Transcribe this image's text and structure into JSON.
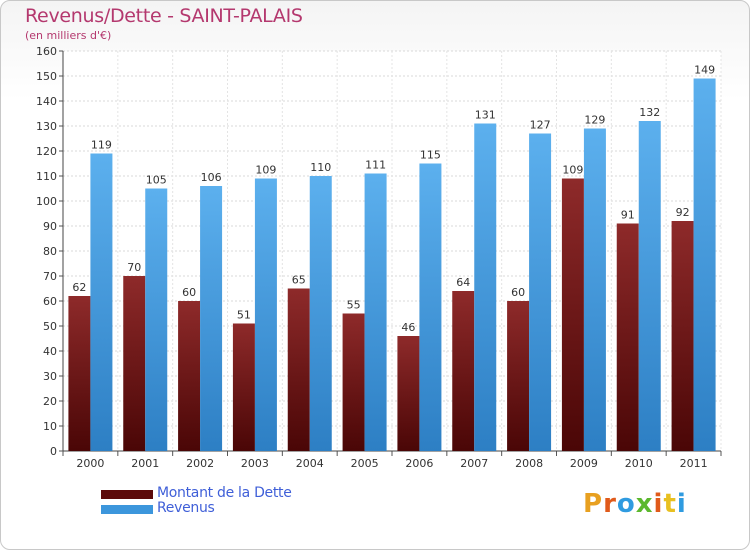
{
  "title": "Revenus/Dette - SAINT-PALAIS",
  "subtitle": "(en milliers d'€)",
  "logo": {
    "text": "Proxiti",
    "colors": [
      "#e8a020",
      "#e05a1a",
      "#2f9be0",
      "#5cb82e",
      "#e05a1a",
      "#e8c020",
      "#2f9be0"
    ]
  },
  "colors": {
    "title": "#b4386e",
    "legend_text": "#3f5fd8",
    "dette": "#7a1c1c",
    "revenus": "#4aa3e6"
  },
  "chart_data": {
    "type": "bar",
    "title": "Revenus/Dette - SAINT-PALAIS",
    "subtitle": "(en milliers d'€)",
    "categories": [
      "2000",
      "2001",
      "2002",
      "2003",
      "2004",
      "2005",
      "2006",
      "2007",
      "2008",
      "2009",
      "2010",
      "2011"
    ],
    "series": [
      {
        "name": "Montant de la Dette",
        "color": "#7a1c1c",
        "values": [
          62,
          70,
          60,
          51,
          65,
          55,
          46,
          64,
          60,
          109,
          91,
          92
        ]
      },
      {
        "name": "Revenus",
        "color": "#4aa3e6",
        "values": [
          119,
          105,
          106,
          109,
          110,
          111,
          115,
          131,
          127,
          129,
          132,
          149
        ]
      }
    ],
    "ylim": [
      0,
      160
    ],
    "ystep": 10,
    "grid": true,
    "legend": "bottom-left"
  }
}
